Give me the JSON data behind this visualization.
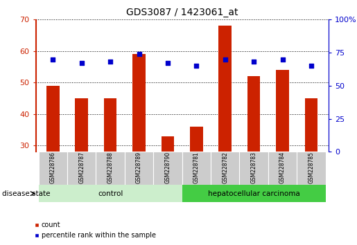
{
  "title": "GDS3087 / 1423061_at",
  "samples": [
    "GSM228786",
    "GSM228787",
    "GSM228788",
    "GSM228789",
    "GSM228790",
    "GSM228781",
    "GSM228782",
    "GSM228783",
    "GSM228784",
    "GSM228785"
  ],
  "counts": [
    49,
    45,
    45,
    59,
    33,
    36,
    68,
    52,
    54,
    45
  ],
  "percentiles": [
    70,
    67,
    68,
    74,
    67,
    65,
    70,
    68,
    70,
    65
  ],
  "ylim_left": [
    28,
    70
  ],
  "ylim_right": [
    0,
    100
  ],
  "yticks_left": [
    30,
    40,
    50,
    60,
    70
  ],
  "yticks_right": [
    0,
    25,
    50,
    75,
    100
  ],
  "groups": [
    {
      "label": "control",
      "indices": [
        0,
        1,
        2,
        3,
        4
      ],
      "color": "#cceecc"
    },
    {
      "label": "hepatocellular carcinoma",
      "indices": [
        5,
        6,
        7,
        8,
        9
      ],
      "color": "#44cc44"
    }
  ],
  "bar_color": "#cc2200",
  "scatter_color": "#0000cc",
  "bar_width": 0.45,
  "grid_color": "#000000",
  "background_color": "#ffffff",
  "tick_area_color": "#cccccc",
  "disease_state_label": "disease state",
  "legend_count_label": "count",
  "legend_percentile_label": "percentile rank within the sample"
}
